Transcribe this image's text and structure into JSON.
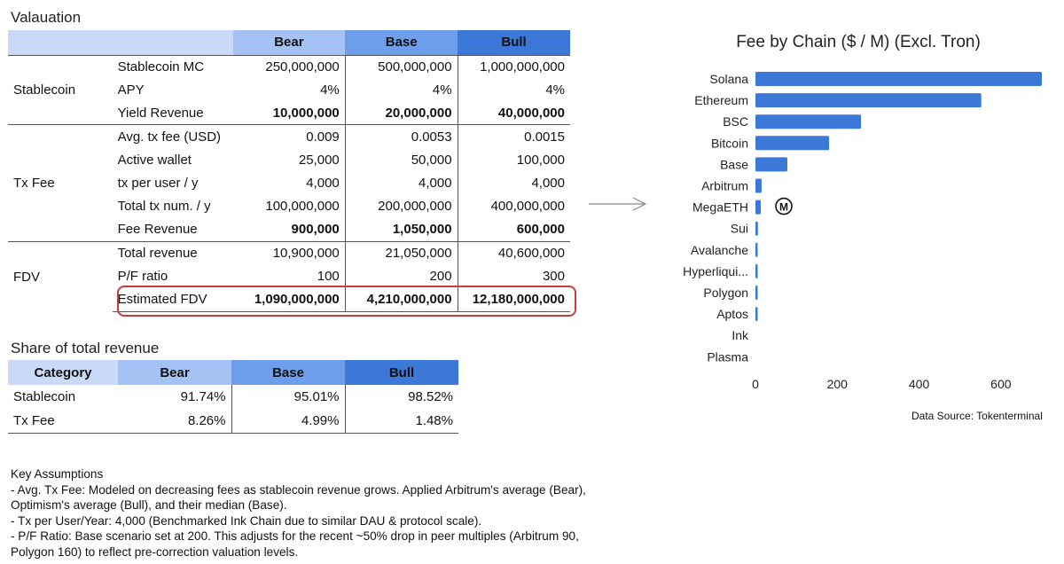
{
  "valuation": {
    "title": "Valauation",
    "headers": [
      "Bear",
      "Base",
      "Bull"
    ],
    "groups": [
      {
        "name": "Stablecoin",
        "rows": [
          {
            "label": "Stablecoin MC",
            "bear": "250,000,000",
            "base": "500,000,000",
            "bull": "1,000,000,000",
            "bold": false
          },
          {
            "label": "APY",
            "bear": "4%",
            "base": "4%",
            "bull": "4%",
            "bold": false
          },
          {
            "label": "Yield Revenue",
            "bear": "10,000,000",
            "base": "20,000,000",
            "bull": "40,000,000",
            "bold": true
          }
        ]
      },
      {
        "name": "Tx Fee",
        "rows": [
          {
            "label": "Avg. tx fee (USD)",
            "bear": "0.009",
            "base": "0.0053",
            "bull": "0.0015",
            "bold": false
          },
          {
            "label": "Active wallet",
            "bear": "25,000",
            "base": "50,000",
            "bull": "100,000",
            "bold": false
          },
          {
            "label": "tx per user / y",
            "bear": "4,000",
            "base": "4,000",
            "bull": "4,000",
            "bold": false
          },
          {
            "label": "Total tx num. / y",
            "bear": "100,000,000",
            "base": "200,000,000",
            "bull": "400,000,000",
            "bold": false
          },
          {
            "label": "Fee Revenue",
            "bear": "900,000",
            "base": "1,050,000",
            "bull": "600,000",
            "bold": true
          }
        ]
      },
      {
        "name": "FDV",
        "rows": [
          {
            "label": "Total revenue",
            "bear": "10,900,000",
            "base": "21,050,000",
            "bull": "40,600,000",
            "bold": false
          },
          {
            "label": "P/F ratio",
            "bear": "100",
            "base": "200",
            "bull": "300",
            "bold": false
          },
          {
            "label": "Estimated FDV",
            "bear": "1,090,000,000",
            "base": "4,210,000,000",
            "bull": "12,180,000,000",
            "bold": true
          }
        ]
      }
    ]
  },
  "share": {
    "title": "Share of total revenue",
    "headers": [
      "Category",
      "Bear",
      "Base",
      "Bull"
    ],
    "rows": [
      {
        "category": "Stablecoin",
        "bear": "91.74%",
        "base": "95.01%",
        "bull": "98.52%"
      },
      {
        "category": "Tx Fee",
        "bear": "8.26%",
        "base": "4.99%",
        "bull": "1.48%"
      }
    ]
  },
  "notes": {
    "heading": "Key Assumptions",
    "lines": [
      "- Avg. Tx Fee: Modeled on decreasing fees as stablecoin revenue grows. Applied Arbitrum's average (Bear), Optimism's average (Bull), and their median (Base).",
      "- Tx per User/Year: 4,000 (Benchmarked Ink Chain due to similar DAU & protocol scale).",
      "- P/F Ratio: Base scenario set at 200. This adjusts for the recent ~50% drop in peer multiples (Arbitrum 90, Polygon 160) to reflect pre-correction valuation levels."
    ]
  },
  "chart_data": {
    "type": "bar",
    "orientation": "horizontal",
    "title": "Fee by Chain ($ / M) (Excl. Tron)",
    "categories": [
      "Solana",
      "Ethereum",
      "BSC",
      "Bitcoin",
      "Base",
      "Arbitrum",
      "MegaETH",
      "Sui",
      "Avalanche",
      "Hyperliqui...",
      "Polygon",
      "Aptos",
      "Ink",
      "Plasma"
    ],
    "values": [
      700,
      552,
      258,
      180,
      78,
      15,
      13,
      6,
      4,
      3,
      2,
      1,
      0,
      0
    ],
    "xticks": [
      0,
      200,
      400,
      600
    ],
    "xlim": [
      0,
      700
    ],
    "bar_color": "#3c78d8",
    "annotation": {
      "category": "MegaETH",
      "icon": "megaeth-logo-icon",
      "text": "M"
    },
    "source": "Data Source: Tokenterminal"
  },
  "arrow_icon": "right-arrow-icon"
}
